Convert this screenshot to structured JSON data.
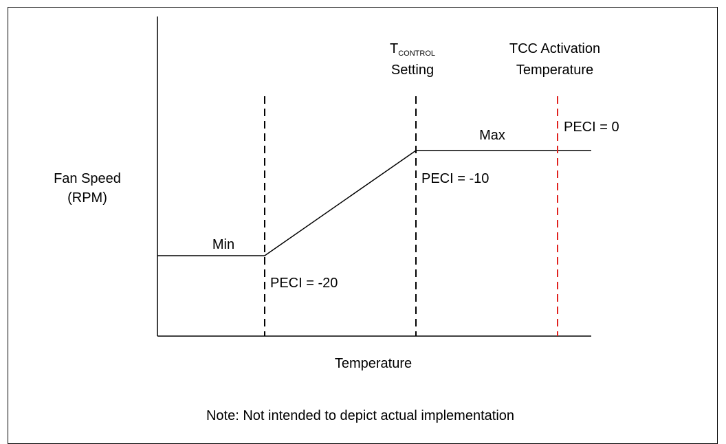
{
  "diagram": {
    "y_axis_label_line1": "Fan Speed",
    "y_axis_label_line2": "(RPM)",
    "x_axis_label": "Temperature",
    "level_min_label": "Min",
    "level_max_label": "Max",
    "tcontrol_main": "T",
    "tcontrol_sub": "CONTROL",
    "tcontrol_line2": "Setting",
    "tcc_line1": "TCC Activation",
    "tcc_line2": "Temperature",
    "peci_minus20": "PECI = -20",
    "peci_minus10": "PECI = -10",
    "peci_zero": "PECI = 0",
    "note": "Note: Not intended to depict actual implementation",
    "tcc_line_color": "#e0221f"
  }
}
